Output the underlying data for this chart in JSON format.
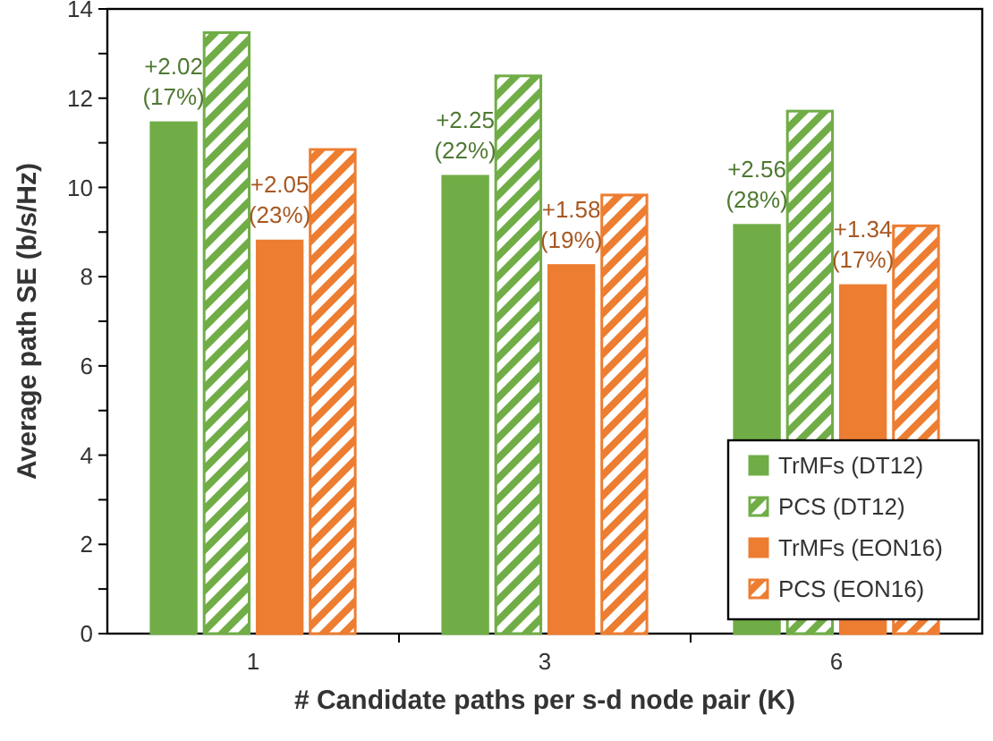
{
  "chart_data": {
    "type": "bar",
    "xlabel": "# Candidate paths per s-d node pair (K)",
    "ylabel": "Average path SE (b/s/Hz)",
    "categories": [
      "1",
      "3",
      "6"
    ],
    "series": [
      {
        "name": "TrMFs (DT12)",
        "color": "#70ad47",
        "values": [
          11.45,
          10.25,
          9.15
        ]
      },
      {
        "name": "PCS (DT12)",
        "color": "#70ad47",
        "values": [
          13.47,
          12.5,
          11.71
        ]
      },
      {
        "name": "TrMFs (EON16)",
        "color": "#ed7d31",
        "values": [
          8.8,
          8.25,
          7.8
        ]
      },
      {
        "name": "PCS (EON16)",
        "color": "#ed7d31",
        "values": [
          10.85,
          9.83,
          9.14
        ]
      }
    ],
    "ylim": [
      0,
      14
    ],
    "yticks": [
      0,
      {
        "value": 1,
        "label": null
      },
      2,
      {
        "value": 3,
        "label": null
      },
      4,
      {
        "value": 5,
        "label": null
      },
      6,
      {
        "value": 7,
        "label": null
      },
      8,
      {
        "value": 9,
        "label": null
      },
      10,
      {
        "value": 11,
        "label": null
      },
      12,
      {
        "value": 13,
        "label": null
      },
      14
    ],
    "legend": "bottom right",
    "annotations": [
      {
        "text": "+2.02\n(17%)",
        "x": "1",
        "y": 11.45
      },
      {
        "text": "+2.05\n(23%)",
        "x": "1",
        "y": 8.8
      },
      {
        "text": "+2.25\n(22%)",
        "x": "3",
        "y": 10.25
      },
      {
        "text": "+1.58\n(19%)",
        "x": "3",
        "y": 8.25
      },
      {
        "text": "+2.56\n(28%)",
        "x": "6",
        "y": 9.15
      },
      {
        "text": "+1.34\n(17%)",
        "x": "6",
        "y": 7.8
      }
    ]
  }
}
